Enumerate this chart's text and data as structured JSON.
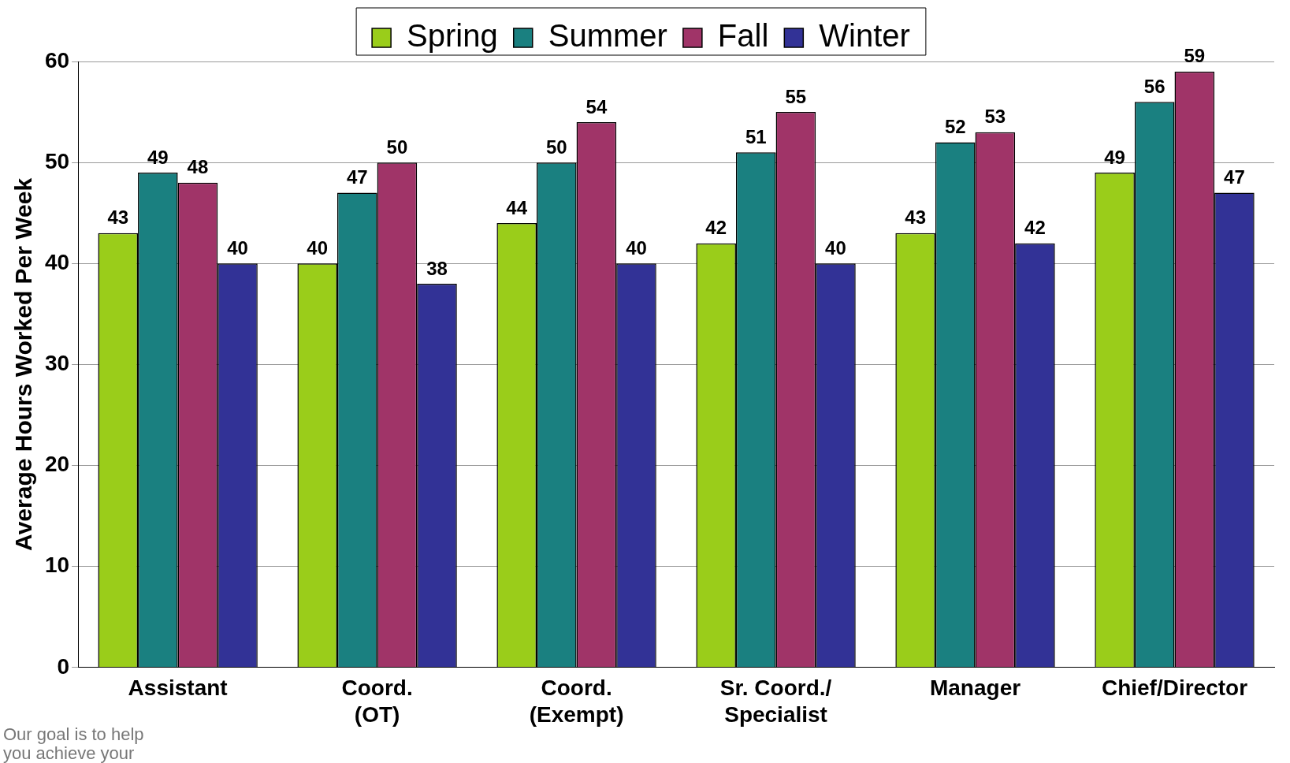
{
  "chart_data": {
    "type": "bar",
    "ylabel": "Average Hours Worked Per Week",
    "categories": [
      "Assistant",
      "Coord.\n(OT)",
      "Coord.\n(Exempt)",
      "Sr. Coord./\nSpecialist",
      "Manager",
      "Chief/Director"
    ],
    "series": [
      {
        "name": "Spring",
        "color": "#9acd1a",
        "values": [
          43,
          40,
          44,
          42,
          43,
          49
        ]
      },
      {
        "name": "Summer",
        "color": "#1a8080",
        "values": [
          49,
          47,
          50,
          51,
          52,
          56
        ]
      },
      {
        "name": "Fall",
        "color": "#a03468",
        "values": [
          48,
          50,
          54,
          55,
          53,
          59
        ]
      },
      {
        "name": "Winter",
        "color": "#323296",
        "values": [
          40,
          38,
          40,
          40,
          42,
          47
        ]
      }
    ],
    "ylim": [
      0,
      60
    ],
    "yticks": [
      0,
      10,
      20,
      30,
      40,
      50,
      60
    ],
    "grid": "y",
    "legend": "top",
    "data_labels": true,
    "annotations": [
      "Our goal is to help you achieve your"
    ]
  }
}
